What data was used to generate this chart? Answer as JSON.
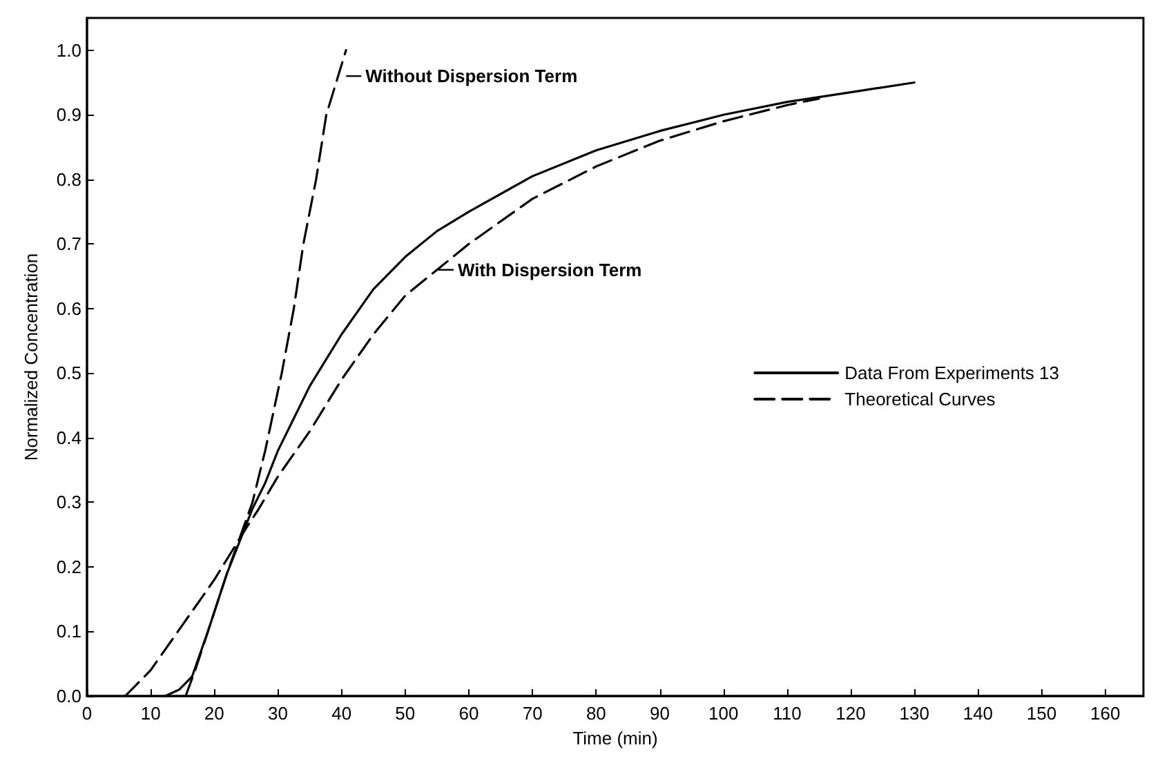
{
  "chart_data": {
    "type": "line",
    "xlabel": "Time (min)",
    "ylabel": "Normalized Concentration",
    "xlim": [
      0,
      166
    ],
    "ylim": [
      0,
      1.05
    ],
    "xticks": [
      0,
      10,
      20,
      30,
      40,
      50,
      60,
      70,
      80,
      90,
      100,
      110,
      120,
      130,
      140,
      150,
      160
    ],
    "yticks": [
      {
        "value": 0,
        "label": "0.0"
      },
      {
        "value": 0.1,
        "label": "0.1"
      },
      {
        "value": 0.2,
        "label": "0.2"
      },
      {
        "value": 0.3,
        "label": "0.3"
      },
      {
        "value": 0.4,
        "label": "0.4"
      },
      {
        "value": 0.5,
        "label": "0.5"
      },
      {
        "value": 0.6,
        "label": "0.6"
      },
      {
        "value": 0.7,
        "label": "0.7"
      },
      {
        "value": 0.8,
        "label": "0.8"
      },
      {
        "value": 0.9,
        "label": "0.9"
      },
      {
        "value": 1,
        "label": "1.0"
      }
    ],
    "grid": false,
    "legend": "right",
    "marker": "none",
    "series": [
      {
        "name": "Data From Experiments 13",
        "color": "#000000",
        "line_style": "solid",
        "x": [
          12.3,
          14.5,
          16.5,
          19,
          22,
          24,
          26,
          28,
          30,
          32,
          35,
          40,
          45,
          50,
          55,
          60,
          70,
          80,
          90,
          100,
          110,
          120,
          130
        ],
        "values": [
          0,
          0.01,
          0.03,
          0.1,
          0.19,
          0.24,
          0.29,
          0.33,
          0.38,
          0.42,
          0.48,
          0.56,
          0.63,
          0.68,
          0.72,
          0.75,
          0.805,
          0.845,
          0.875,
          0.9,
          0.92,
          0.935,
          0.95
        ]
      },
      {
        "name": "Theoretical Curves",
        "color": "#000000",
        "line_style": "dashed",
        "x": [
          6,
          10,
          15,
          20,
          25,
          27,
          30,
          35,
          40,
          45,
          50,
          55,
          60,
          70,
          80,
          90,
          100,
          110,
          115
        ],
        "values": [
          0,
          0.04,
          0.11,
          0.18,
          0.26,
          0.29,
          0.34,
          0.41,
          0.49,
          0.56,
          0.62,
          0.66,
          0.7,
          0.77,
          0.82,
          0.86,
          0.89,
          0.915,
          0.925
        ]
      },
      {
        "color": "#000000",
        "line_style": "dashed",
        "x": [
          15.5,
          17,
          19,
          22,
          26,
          28,
          30.6,
          32.5,
          34,
          36,
          37.6,
          40.7
        ],
        "values": [
          0,
          0.04,
          0.1,
          0.19,
          0.3,
          0.38,
          0.5,
          0.6,
          0.7,
          0.8,
          0.9,
          1.0
        ]
      }
    ],
    "annotations": [
      {
        "text": "Without Dispersion Term",
        "x": 40.5,
        "y": 0.96
      },
      {
        "text": "With Dispersion Term",
        "x": 55,
        "y": 0.66
      }
    ]
  }
}
